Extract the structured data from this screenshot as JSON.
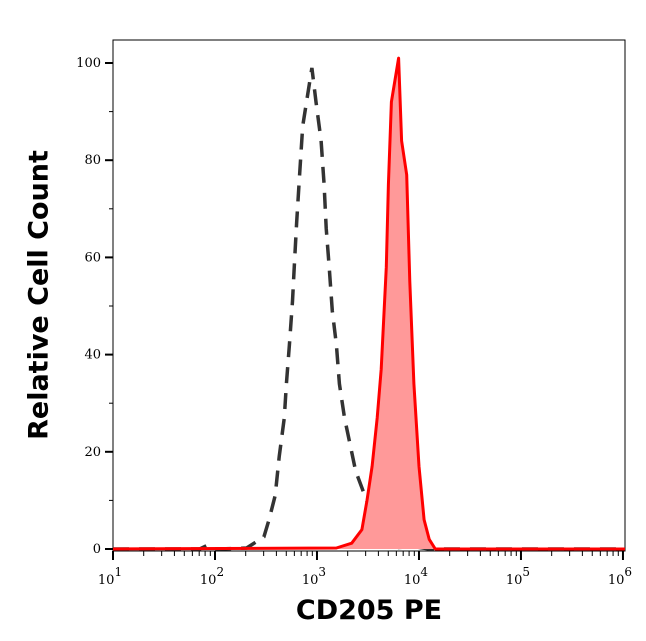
{
  "chart_data": {
    "type": "area",
    "xlabel": "CD205 PE",
    "ylabel": "Relative Cell Count",
    "x_scale": "log",
    "xlim_log10": [
      1,
      6.02
    ],
    "ylim": [
      0,
      100
    ],
    "x_ticks": [
      {
        "base": "10",
        "exp": "1"
      },
      {
        "base": "10",
        "exp": "2"
      },
      {
        "base": "10",
        "exp": "3"
      },
      {
        "base": "10",
        "exp": "4"
      },
      {
        "base": "10",
        "exp": "5"
      },
      {
        "base": "10",
        "exp": "6"
      }
    ],
    "y_ticks": [
      "0",
      "20",
      "40",
      "60",
      "80",
      "100"
    ],
    "grid": false,
    "colors": {
      "stained": "#ff0000",
      "stained_fill": "#ff9999",
      "control": "#333333"
    },
    "series": [
      {
        "style": "dashed",
        "x_log10": [
          1.0,
          1.85,
          1.93,
          2.0,
          2.2,
          2.31,
          2.48,
          2.53,
          2.59,
          2.63,
          2.68,
          2.7,
          2.73,
          2.76,
          2.78,
          2.8,
          2.83,
          2.86,
          2.95,
          2.99,
          3.04,
          3.07,
          3.09,
          3.12,
          3.15,
          3.19,
          3.22,
          3.27,
          3.32,
          3.38,
          3.46,
          3.58,
          3.68,
          3.8,
          3.95,
          4.1,
          6.02
        ],
        "y": [
          0,
          0,
          0.8,
          0,
          0.1,
          0.2,
          2.5,
          6,
          11,
          19,
          27,
          34,
          42,
          51,
          59,
          67,
          77,
          87,
          99,
          92,
          84,
          75,
          66,
          58,
          49,
          42,
          34,
          27,
          22,
          16,
          11.5,
          5,
          2,
          0.3,
          0.5,
          0,
          0
        ]
      },
      {
        "style": "filled",
        "x_log10": [
          1.0,
          3.19,
          3.34,
          3.44,
          3.49,
          3.54,
          3.59,
          3.63,
          3.68,
          3.7,
          3.73,
          3.8,
          3.83,
          3.88,
          3.91,
          3.95,
          4.0,
          4.05,
          4.1,
          4.16,
          6.02
        ],
        "y": [
          0,
          0.2,
          1.2,
          4,
          10,
          17,
          27,
          37,
          58,
          75,
          92,
          101,
          84,
          77,
          55,
          34,
          17,
          6,
          2,
          0,
          0
        ]
      }
    ]
  }
}
